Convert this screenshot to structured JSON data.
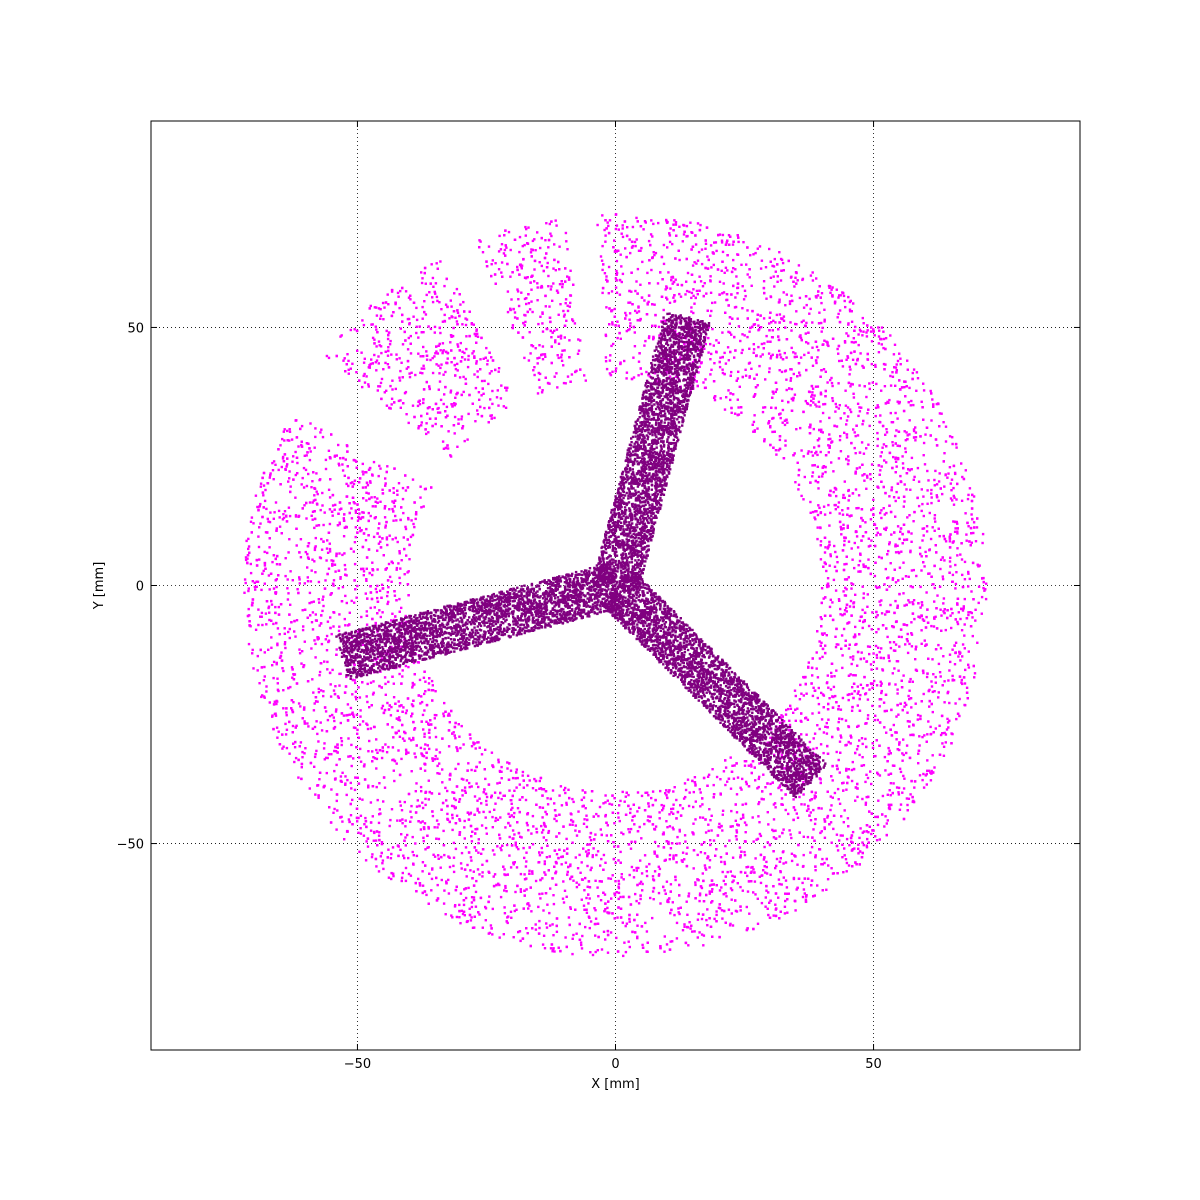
{
  "chart_data": {
    "type": "scatter",
    "title": "",
    "xlabel": "X [mm]",
    "ylabel": "Y [mm]",
    "xlim": [
      -90,
      90
    ],
    "ylim": [
      -90,
      90
    ],
    "xticks": [
      -50,
      0,
      50
    ],
    "yticks": [
      -50,
      0,
      50
    ],
    "xtick_labels": [
      "−50",
      "0",
      "50"
    ],
    "ytick_labels": [
      "−50",
      "0",
      "50"
    ],
    "grid": true,
    "legend": "none",
    "series": [
      {
        "color": "#ff00ff",
        "shape": "annulus",
        "center": [
          0,
          0
        ],
        "r_inner": 40,
        "r_outer": 72,
        "gaps_deg": [
          [
            93,
            98
          ],
          [
            112,
            118
          ],
          [
            142,
            152
          ]
        ],
        "approx_points": 8000
      },
      {
        "color": "#800080",
        "shape": "three-arm spoke",
        "center": [
          0,
          0
        ],
        "arm_width": 9,
        "arms": [
          {
            "end": [
              14,
              52
            ]
          },
          {
            "end": [
              -53,
              -14
            ]
          },
          {
            "end": [
              38,
              -38
            ]
          }
        ],
        "approx_points": 9000
      }
    ]
  }
}
